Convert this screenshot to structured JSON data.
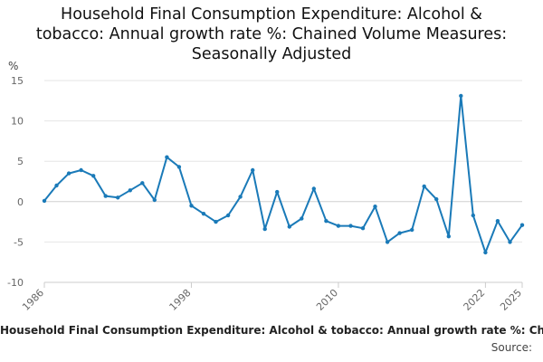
{
  "title_lines": [
    "Household Final Consumption Expenditure: Alcohol &",
    "tobacco: Annual growth rate %: Chained Volume Measures:",
    "Seasonally Adjusted"
  ],
  "footer": {
    "series_label": "Household Final Consumption Expenditure: Alcohol & tobacco: Annual growth rate %: Chained Volume Measures: Seasonally Adjusted",
    "source_label": "Source:"
  },
  "colors": {
    "line": "#1a7ab8",
    "grid": "#e6e6e6",
    "axis": "#cccccc"
  },
  "chart_data": {
    "type": "line",
    "title": "Household Final Consumption Expenditure: Alcohol & tobacco: Annual growth rate %: Chained Volume Measures: Seasonally Adjusted",
    "ylabel": "%",
    "xlabel": "",
    "ylim": [
      -10,
      15
    ],
    "yticks": [
      -10,
      -5,
      0,
      5,
      10,
      15
    ],
    "xlim": [
      1986,
      2025
    ],
    "xticks": [
      1986,
      1998,
      2010,
      2022,
      2025
    ],
    "grid": true,
    "series": [
      {
        "x": [
          1986,
          1987,
          1988,
          1989,
          1990,
          1991,
          1992,
          1993,
          1994,
          1995,
          1996,
          1997,
          1998,
          1999,
          2000,
          2001,
          2002,
          2003,
          2004,
          2005,
          2006,
          2007,
          2008,
          2009,
          2010,
          2011,
          2012,
          2013,
          2014,
          2015,
          2016,
          2017,
          2018,
          2019,
          2020,
          2021,
          2022,
          2023,
          2024,
          2025
        ],
        "values": [
          0.1,
          2.0,
          3.5,
          3.9,
          3.2,
          0.7,
          0.5,
          1.4,
          2.3,
          0.2,
          5.5,
          4.3,
          -0.5,
          -1.5,
          -2.5,
          -1.7,
          0.6,
          3.9,
          -3.4,
          1.2,
          -3.1,
          -2.1,
          1.6,
          -2.4,
          -3.0,
          -3.0,
          -3.3,
          -0.6,
          -5.0,
          -3.9,
          -3.5,
          1.9,
          0.3,
          -4.3,
          13.1,
          -1.7,
          -6.3,
          -2.4,
          -5.0,
          -2.9
        ]
      }
    ]
  }
}
